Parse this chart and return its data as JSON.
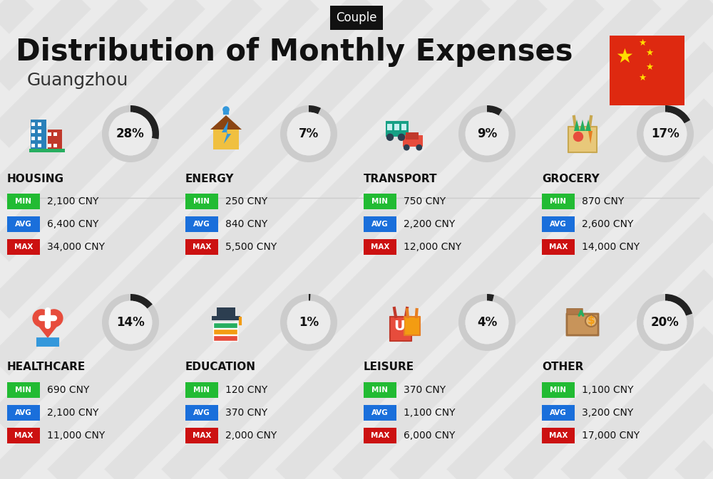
{
  "title": "Distribution of Monthly Expenses",
  "subtitle": "Guangzhou",
  "tag": "Couple",
  "bg_color": "#ebebeb",
  "categories": [
    {
      "name": "HOUSING",
      "pct": 28,
      "min_val": "2,100 CNY",
      "avg_val": "6,400 CNY",
      "max_val": "34,000 CNY",
      "row": 0,
      "col": 0
    },
    {
      "name": "ENERGY",
      "pct": 7,
      "min_val": "250 CNY",
      "avg_val": "840 CNY",
      "max_val": "5,500 CNY",
      "row": 0,
      "col": 1
    },
    {
      "name": "TRANSPORT",
      "pct": 9,
      "min_val": "750 CNY",
      "avg_val": "2,200 CNY",
      "max_val": "12,000 CNY",
      "row": 0,
      "col": 2
    },
    {
      "name": "GROCERY",
      "pct": 17,
      "min_val": "870 CNY",
      "avg_val": "2,600 CNY",
      "max_val": "14,000 CNY",
      "row": 0,
      "col": 3
    },
    {
      "name": "HEALTHCARE",
      "pct": 14,
      "min_val": "690 CNY",
      "avg_val": "2,100 CNY",
      "max_val": "11,000 CNY",
      "row": 1,
      "col": 0
    },
    {
      "name": "EDUCATION",
      "pct": 1,
      "min_val": "120 CNY",
      "avg_val": "370 CNY",
      "max_val": "2,000 CNY",
      "row": 1,
      "col": 1
    },
    {
      "name": "LEISURE",
      "pct": 4,
      "min_val": "370 CNY",
      "avg_val": "1,100 CNY",
      "max_val": "6,000 CNY",
      "row": 1,
      "col": 2
    },
    {
      "name": "OTHER",
      "pct": 20,
      "min_val": "1,100 CNY",
      "avg_val": "3,200 CNY",
      "max_val": "17,000 CNY",
      "row": 1,
      "col": 3
    }
  ],
  "min_color": "#22bb33",
  "avg_color": "#1a6fdb",
  "max_color": "#cc1111",
  "label_text_color": "#ffffff",
  "value_text_color": "#111111",
  "category_text_color": "#111111",
  "donut_filled_color": "#222222",
  "donut_empty_color": "#cccccc",
  "donut_pct_color": "#111111",
  "title_color": "#111111",
  "subtitle_color": "#333333",
  "tag_bg": "#111111",
  "tag_fg": "#ffffff",
  "stripe_color": "#d8d8d8",
  "stripe_alpha": 0.5,
  "flag_red": "#DE2910",
  "flag_star": "#FFDE00"
}
